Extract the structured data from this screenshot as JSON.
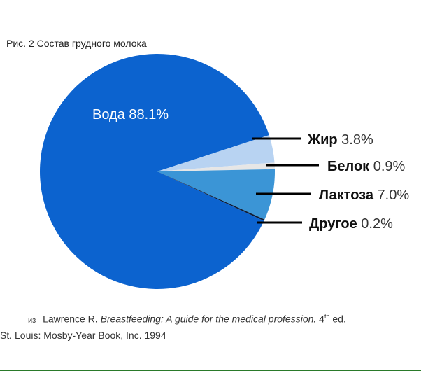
{
  "title": "Рис. 2 Состав грудного молока",
  "chart_data": {
    "type": "pie",
    "slices": [
      {
        "label": "Вода",
        "value": 88.1,
        "value_text": "88.1%",
        "color": "#0c63cf",
        "label_pos": "inside"
      },
      {
        "label": "Жир",
        "value": 3.8,
        "value_text": "3.8%",
        "color": "#b8d3f2",
        "label_pos": "outside"
      },
      {
        "label": "Белок",
        "value": 0.9,
        "value_text": "0.9%",
        "color": "#e6e6e6",
        "label_pos": "outside"
      },
      {
        "label": "Лактоза",
        "value": 7.0,
        "value_text": "7.0%",
        "color": "#3b95d6",
        "label_pos": "outside"
      },
      {
        "label": "Другое",
        "value": 0.2,
        "value_text": "0.2%",
        "color": "#0c1a33",
        "label_pos": "outside"
      }
    ]
  },
  "caption": {
    "prefix": "из",
    "author": "Lawrence R.",
    "book_title": "Breastfeeding: A guide for the medical profession.",
    "edition_num": "4",
    "edition_sup": "th",
    "edition_rest": "ed.",
    "publisher": "St. Louis: Mosby-Year Book, Inc. 1994"
  }
}
